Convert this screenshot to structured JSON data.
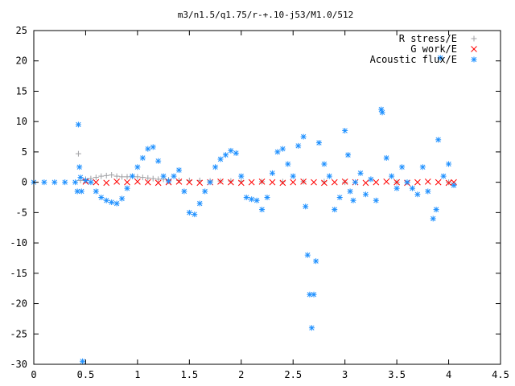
{
  "chart_data": {
    "type": "scatter",
    "title": "m3/n1.5/q1.75/r-+.10-j53/M1.0/512",
    "xlabel": "",
    "ylabel": "",
    "xlim": [
      0,
      4.5
    ],
    "ylim": [
      -30,
      25
    ],
    "xticks": [
      0,
      0.5,
      1,
      1.5,
      2,
      2.5,
      3,
      3.5,
      4,
      4.5
    ],
    "xtick_labels": [
      "0",
      "0.5",
      "1",
      "1.5",
      "2",
      "2.5",
      "3",
      "3.5",
      "4",
      "4.5"
    ],
    "yticks": [
      -30,
      -25,
      -20,
      -15,
      -10,
      -5,
      0,
      5,
      10,
      15,
      20,
      25
    ],
    "ytick_labels": [
      "-30",
      "-25",
      "-20",
      "-15",
      "-10",
      "-5",
      "0",
      "5",
      "10",
      "15",
      "20",
      "25"
    ],
    "grid": false,
    "legend_position": "top-right",
    "series": [
      {
        "name": "R stress/E",
        "marker": "plus",
        "color": "#a0a0a4",
        "x": [
          0.43,
          0.45,
          0.5,
          0.55,
          0.6,
          0.65,
          0.7,
          0.75,
          0.8,
          0.85,
          0.9,
          0.95,
          1.0,
          1.05,
          1.1,
          1.15,
          1.2,
          1.25,
          1.3,
          1.4,
          1.5,
          1.6,
          1.7,
          1.8,
          1.9,
          2.0,
          2.2,
          2.4,
          2.6,
          2.8,
          3.0,
          3.5,
          4.0
        ],
        "y": [
          4.7,
          0.3,
          0.5,
          0.6,
          0.8,
          1.0,
          1.1,
          1.2,
          1.0,
          0.9,
          0.9,
          1.0,
          0.9,
          0.8,
          0.7,
          0.6,
          0.5,
          0.5,
          0.4,
          0.3,
          0.3,
          0.3,
          0.2,
          0.2,
          0.2,
          0.2,
          0.1,
          0.1,
          0.1,
          0.1,
          0.0,
          0.0,
          0.0
        ]
      },
      {
        "name": "G work/E",
        "marker": "cross",
        "color": "#ff0000",
        "x": [
          0.5,
          0.6,
          0.7,
          0.8,
          0.9,
          1.0,
          1.1,
          1.2,
          1.3,
          1.4,
          1.5,
          1.6,
          1.7,
          1.8,
          1.9,
          2.0,
          2.1,
          2.2,
          2.3,
          2.4,
          2.5,
          2.6,
          2.7,
          2.8,
          2.9,
          3.0,
          3.1,
          3.2,
          3.3,
          3.4,
          3.5,
          3.6,
          3.7,
          3.8,
          3.9,
          4.0,
          4.05
        ],
        "y": [
          0.1,
          0.0,
          -0.1,
          0.1,
          0.0,
          0.1,
          0.0,
          -0.1,
          0.0,
          0.1,
          0.0,
          -0.1,
          0.0,
          0.1,
          0.0,
          -0.1,
          0.0,
          0.1,
          0.0,
          -0.1,
          0.0,
          0.1,
          0.0,
          -0.1,
          0.0,
          0.1,
          0.0,
          -0.1,
          0.0,
          0.1,
          0.0,
          -0.1,
          0.0,
          0.1,
          0.0,
          -0.1,
          0.0
        ]
      },
      {
        "name": "Acoustic flux/E",
        "marker": "star",
        "color": "#1e90ff",
        "x": [
          0.0,
          0.1,
          0.2,
          0.3,
          0.4,
          0.42,
          0.43,
          0.44,
          0.45,
          0.46,
          0.47,
          0.5,
          0.55,
          0.6,
          0.65,
          0.7,
          0.75,
          0.8,
          0.85,
          0.9,
          0.95,
          1.0,
          1.05,
          1.1,
          1.15,
          1.2,
          1.25,
          1.3,
          1.35,
          1.4,
          1.45,
          1.5,
          1.55,
          1.6,
          1.65,
          1.7,
          1.75,
          1.8,
          1.85,
          1.9,
          1.95,
          2.0,
          2.05,
          2.1,
          2.15,
          2.2,
          2.25,
          2.3,
          2.35,
          2.4,
          2.45,
          2.5,
          2.55,
          2.6,
          2.62,
          2.64,
          2.66,
          2.68,
          2.7,
          2.72,
          2.75,
          2.8,
          2.85,
          2.9,
          2.95,
          3.0,
          3.03,
          3.05,
          3.08,
          3.1,
          3.15,
          3.2,
          3.25,
          3.3,
          3.35,
          3.36,
          3.4,
          3.45,
          3.5,
          3.55,
          3.6,
          3.65,
          3.7,
          3.75,
          3.8,
          3.85,
          3.88,
          3.9,
          3.92,
          3.95,
          4.0,
          4.05
        ],
        "y": [
          0.0,
          0.0,
          0.0,
          0.0,
          0.0,
          -1.5,
          9.5,
          2.5,
          0.8,
          -1.5,
          -29.5,
          0.3,
          0.0,
          -1.5,
          -2.5,
          -3.0,
          -3.3,
          -3.5,
          -2.7,
          -1.0,
          1.0,
          2.5,
          4.0,
          5.5,
          5.8,
          3.5,
          1.0,
          0.2,
          1.0,
          2.0,
          -1.5,
          -5.0,
          -5.3,
          -3.5,
          -1.5,
          0.0,
          2.5,
          3.8,
          4.5,
          5.2,
          4.8,
          1.0,
          -2.5,
          -2.8,
          -3.0,
          -4.5,
          -2.5,
          1.5,
          5.0,
          5.5,
          3.0,
          1.0,
          6.0,
          7.5,
          -4.0,
          -12.0,
          -18.5,
          -24.0,
          -18.5,
          -13.0,
          6.5,
          3.0,
          1.0,
          -4.5,
          -2.5,
          8.5,
          4.5,
          -1.5,
          -3.0,
          0.0,
          1.5,
          -2.0,
          0.5,
          -3.0,
          12.0,
          11.5,
          4.0,
          1.0,
          -1.0,
          2.5,
          0.0,
          -1.0,
          -2.0,
          2.5,
          -1.5,
          -6.0,
          -4.5,
          7.0,
          20.5,
          1.0,
          3.0,
          -0.5
        ]
      }
    ]
  }
}
